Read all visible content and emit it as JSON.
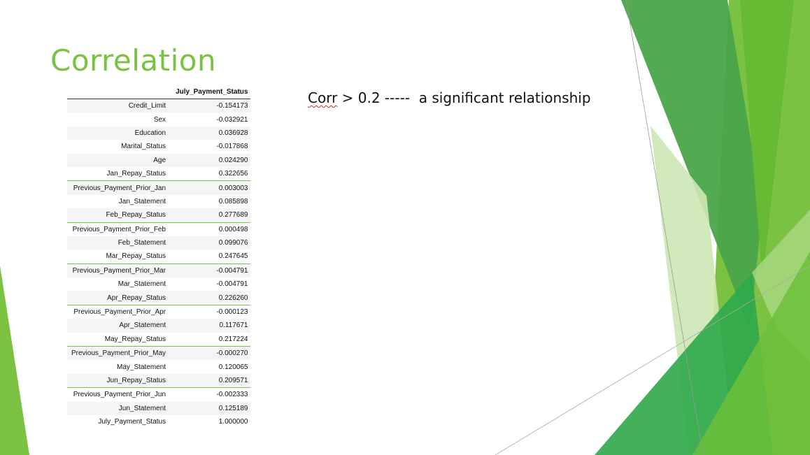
{
  "slide": {
    "title": "Correlation",
    "note_prefix": "Corr",
    "note_rest": " > 0.2 -----  a significant relationship"
  },
  "table": {
    "header": "July_Payment_Status",
    "rows": [
      {
        "label": "Credit_Limit",
        "value": "-0.154173"
      },
      {
        "label": "Sex",
        "value": "-0.032921"
      },
      {
        "label": "Education",
        "value": "0.036928"
      },
      {
        "label": "Marital_Status",
        "value": "-0.017868"
      },
      {
        "label": "Age",
        "value": "0.024290"
      },
      {
        "label": "Jan_Repay_Status",
        "value": "0.322656"
      },
      {
        "label": "Previous_Payment_Prior_Jan",
        "value": "0.003003"
      },
      {
        "label": "Jan_Statement",
        "value": "0.085898"
      },
      {
        "label": "Feb_Repay_Status",
        "value": "0.277689"
      },
      {
        "label": "Previous_Payment_Prior_Feb",
        "value": "0.000498"
      },
      {
        "label": "Feb_Statement",
        "value": "0.099076"
      },
      {
        "label": "Mar_Repay_Status",
        "value": "0.247645"
      },
      {
        "label": "Previous_Payment_Prior_Mar",
        "value": "-0.004791"
      },
      {
        "label": "Mar_Statement",
        "value": "-0.004791"
      },
      {
        "label": "Apr_Repay_Status",
        "value": "0.226260"
      },
      {
        "label": "Previous_Payment_Prior_Apr",
        "value": "-0.000123"
      },
      {
        "label": "Apr_Statement",
        "value": "0.117671"
      },
      {
        "label": "May_Repay_Status",
        "value": "0.217224"
      },
      {
        "label": "Previous_Payment_Prior_May",
        "value": "-0.000270"
      },
      {
        "label": "May_Statement",
        "value": "0.120065"
      },
      {
        "label": "Jun_Repay_Status",
        "value": "0.209571"
      },
      {
        "label": "Previous_Payment_Prior_Jun",
        "value": "-0.002333"
      },
      {
        "label": "Jun_Statement",
        "value": "0.125189"
      },
      {
        "label": "July_Payment_Status",
        "value": "1.000000"
      }
    ]
  },
  "theme": {
    "accent": "#7cc242",
    "dark_green": "#2e8b3a",
    "mid_green": "#4aa54a",
    "light_green": "#b9e09a"
  }
}
